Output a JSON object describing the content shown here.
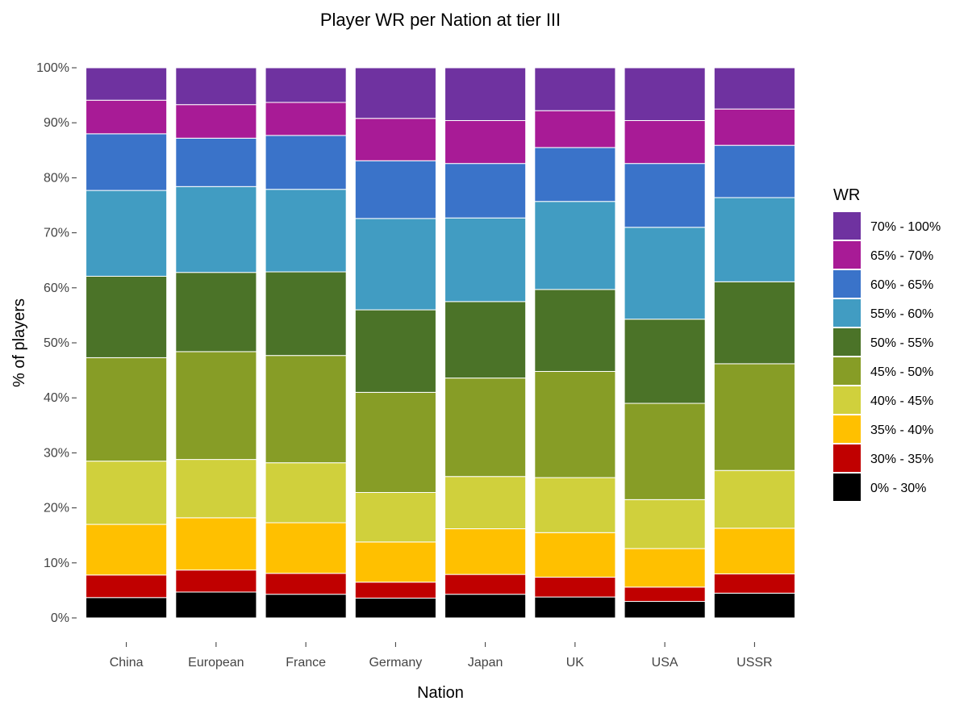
{
  "chart_data": {
    "type": "bar",
    "stacked": true,
    "title": "Player WR per Nation at tier III",
    "xlabel": "Nation",
    "ylabel": "% of players",
    "ylim": [
      0,
      100
    ],
    "yticks": [
      "0%",
      "10%",
      "20%",
      "30%",
      "40%",
      "50%",
      "60%",
      "70%",
      "80%",
      "90%",
      "100%"
    ],
    "categories": [
      "China",
      "European",
      "France",
      "Germany",
      "Japan",
      "UK",
      "USA",
      "USSR"
    ],
    "legend": {
      "title": "WR",
      "position": "right"
    },
    "series": [
      {
        "name": "0% - 30%",
        "color": "#000000",
        "values": [
          3.7,
          4.7,
          4.3,
          3.6,
          4.3,
          3.8,
          3.0,
          4.5
        ]
      },
      {
        "name": "30% - 35%",
        "color": "#C00000",
        "values": [
          4.1,
          4.0,
          3.8,
          2.9,
          3.6,
          3.6,
          2.6,
          3.5
        ]
      },
      {
        "name": "35% - 40%",
        "color": "#FFC000",
        "values": [
          9.2,
          9.5,
          9.2,
          7.3,
          8.3,
          8.1,
          7.0,
          8.3
        ]
      },
      {
        "name": "40% - 45%",
        "color": "#D0D03C",
        "values": [
          11.5,
          10.6,
          10.9,
          9.0,
          9.5,
          10.0,
          8.9,
          10.5
        ]
      },
      {
        "name": "45% - 50%",
        "color": "#879D26",
        "values": [
          18.8,
          19.6,
          19.5,
          18.2,
          17.9,
          19.3,
          17.5,
          19.4
        ]
      },
      {
        "name": "50% - 55%",
        "color": "#4B7328",
        "values": [
          14.8,
          14.4,
          15.2,
          15.0,
          13.9,
          14.9,
          15.3,
          14.9
        ]
      },
      {
        "name": "55% - 60%",
        "color": "#419CC2",
        "values": [
          15.6,
          15.6,
          15.0,
          16.6,
          15.2,
          16.0,
          16.7,
          15.3
        ]
      },
      {
        "name": "60% - 65%",
        "color": "#3A73C9",
        "values": [
          10.3,
          8.8,
          9.8,
          10.5,
          9.9,
          9.8,
          11.6,
          9.5
        ]
      },
      {
        "name": "65% - 70%",
        "color": "#A81B96",
        "values": [
          6.1,
          6.1,
          6.0,
          7.7,
          7.8,
          6.7,
          7.8,
          6.6
        ]
      },
      {
        "name": "70% - 100%",
        "color": "#6F32A0",
        "values": [
          5.9,
          6.7,
          6.3,
          9.2,
          9.6,
          7.8,
          9.6,
          7.5
        ]
      }
    ]
  }
}
